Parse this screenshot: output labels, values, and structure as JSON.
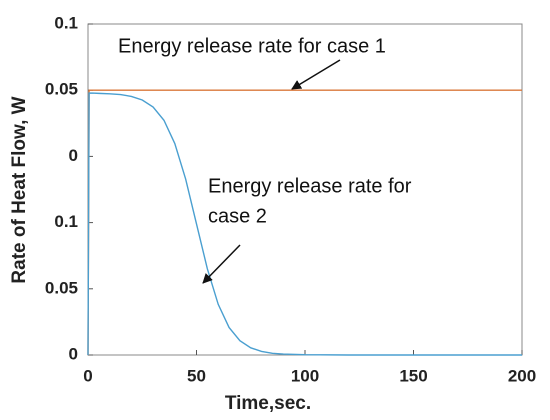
{
  "chart_data": {
    "type": "line",
    "xlabel": "Time,sec.",
    "ylabel": "Rate of Heat Flow, W",
    "xlim": [
      0,
      200
    ],
    "xticks": [
      0,
      50,
      100,
      150,
      200
    ],
    "ylim": [
      0,
      0.25
    ],
    "yticks": [
      0,
      0.05,
      0.1,
      {
        "value": 0.15,
        "label": "0"
      },
      {
        "value": 0.2,
        "label": "0.05"
      },
      {
        "value": 0.25,
        "label": "0.1"
      }
    ],
    "series": [
      {
        "color": "#d9773a",
        "x": [
          0,
          0.5,
          200
        ],
        "values": [
          0,
          0.2,
          0.2
        ]
      },
      {
        "color": "#4a9fd0",
        "x": [
          0,
          0.5,
          2,
          5,
          10,
          15,
          20,
          25,
          30,
          35,
          40,
          45,
          50,
          55,
          60,
          65,
          70,
          75,
          80,
          85,
          90,
          100,
          120,
          150,
          200
        ],
        "values": [
          0,
          0.1978,
          0.1978,
          0.1976,
          0.1973,
          0.1967,
          0.1953,
          0.1926,
          0.1873,
          0.1773,
          0.1597,
          0.1329,
          0.099,
          0.0651,
          0.0383,
          0.0208,
          0.0108,
          0.0054,
          0.0027,
          0.0013,
          0.0007,
          0.0002,
          0,
          0,
          0
        ]
      }
    ],
    "annotations": [
      {
        "lines": [
          "Energy release rate for case 1"
        ]
      },
      {
        "lines": [
          "Energy release rate for",
          "case 2"
        ]
      }
    ]
  }
}
